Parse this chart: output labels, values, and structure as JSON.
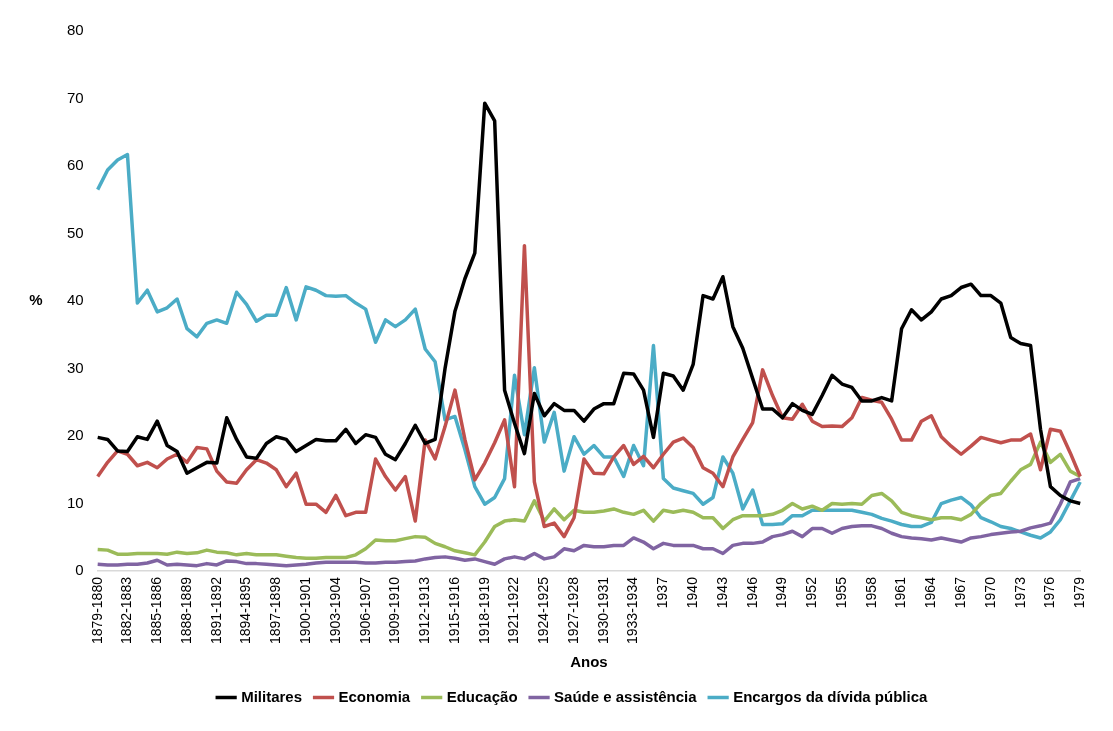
{
  "chart_data": {
    "type": "line",
    "xlabel": "Anos",
    "ylabel": "%",
    "categories": [
      "1879-1880",
      null,
      null,
      "1882-1883",
      null,
      null,
      "1885-1886",
      null,
      null,
      "1888-1889",
      null,
      null,
      "1891-1892",
      null,
      null,
      "1894-1895",
      null,
      null,
      "1897-1898",
      null,
      null,
      "1900-1901",
      null,
      null,
      "1903-1904",
      null,
      null,
      "1906-1907",
      null,
      null,
      "1909-1910",
      null,
      null,
      "1912-1913",
      null,
      null,
      "1915-1916",
      null,
      null,
      "1918-1919",
      null,
      null,
      "1921-1922",
      null,
      null,
      "1924-1925",
      null,
      null,
      "1927-1928",
      null,
      null,
      "1930-1931",
      null,
      null,
      "1933-1934",
      null,
      null,
      "1937",
      null,
      null,
      "1940",
      null,
      null,
      "1943",
      null,
      null,
      "1946",
      null,
      null,
      "1949",
      null,
      null,
      "1952",
      null,
      null,
      "1955",
      null,
      null,
      "1958",
      null,
      null,
      "1961",
      null,
      null,
      "1964",
      null,
      null,
      "1967",
      null,
      null,
      "1970",
      null,
      null,
      "1973",
      null,
      null,
      "1976",
      null,
      null,
      "1979"
    ],
    "series": [
      {
        "name": "Militares",
        "color": "#000000",
        "values": [
          19.8,
          19.5,
          17.8,
          17.7,
          19.9,
          19.5,
          22.2,
          18.6,
          17.7,
          14.5,
          15.3,
          16.1,
          16,
          22.7,
          19.5,
          16.9,
          16.7,
          18.9,
          19.9,
          19.5,
          17.7,
          18.6,
          19.5,
          19.3,
          19.3,
          21,
          18.9,
          20.2,
          19.8,
          17.3,
          16.5,
          18.9,
          21.6,
          18.9,
          19.5,
          30,
          38.5,
          43.3,
          47.1,
          69.3,
          66.7,
          26.8,
          21.9,
          17.4,
          26.3,
          23,
          24.8,
          23.8,
          23.8,
          22.2,
          24,
          24.8,
          24.8,
          29.3,
          29.2,
          26.8,
          19.8,
          29.3,
          28.9,
          26.8,
          30.6,
          40.8,
          40.3,
          43.6,
          36.2,
          33,
          28.5,
          24,
          24,
          22.7,
          24.8,
          23.8,
          23.2,
          26,
          29,
          27.7,
          27.2,
          25.2,
          25.2,
          25.7,
          25.2,
          35.9,
          38.7,
          37.2,
          38.4,
          40.3,
          40.8,
          42,
          42.5,
          40.8,
          40.8,
          39.7,
          34.6,
          33.7,
          33.4,
          21,
          12.5,
          11.2,
          10.4,
          10
        ]
      },
      {
        "name": "Economia",
        "color": "#c0504d",
        "values": [
          14,
          16.1,
          17.8,
          17.3,
          15.6,
          16.1,
          15.3,
          16.6,
          17.3,
          16.1,
          18.3,
          18.1,
          14.8,
          13.2,
          13,
          15,
          16.5,
          16,
          15,
          12.5,
          14.5,
          9.9,
          9.9,
          8.7,
          11.2,
          8.2,
          8.7,
          8.7,
          16.6,
          14,
          12,
          14,
          7.4,
          19.4,
          16.6,
          21.4,
          26.8,
          19.5,
          13.5,
          16,
          19,
          22.4,
          12.5,
          48.2,
          13.2,
          6.6,
          7.1,
          5.1,
          7.9,
          16.6,
          14.5,
          14.4,
          16.9,
          18.6,
          15.8,
          17,
          15.3,
          17.3,
          19.1,
          19.7,
          18.3,
          15.3,
          14.5,
          12.5,
          16.9,
          19.5,
          22,
          29.8,
          26,
          22.7,
          22.5,
          24.7,
          22.2,
          21.4,
          21.5,
          21.4,
          22.7,
          25.7,
          25.3,
          25,
          22.5,
          19.4,
          19.4,
          22.2,
          23,
          19.9,
          18.5,
          17.3,
          18.5,
          19.8,
          19.4,
          19,
          19.4,
          19.4,
          20.3,
          15,
          21,
          20.7,
          17.5,
          14
        ]
      },
      {
        "name": "Educação",
        "color": "#9bbb59",
        "values": [
          3.2,
          3.1,
          2.5,
          2.5,
          2.6,
          2.6,
          2.6,
          2.5,
          2.8,
          2.6,
          2.7,
          3.1,
          2.8,
          2.7,
          2.4,
          2.6,
          2.4,
          2.4,
          2.4,
          2.2,
          2,
          1.9,
          1.9,
          2,
          2,
          2,
          2.4,
          3.3,
          4.6,
          4.5,
          4.5,
          4.8,
          5.1,
          5,
          4.1,
          3.6,
          3,
          2.7,
          2.4,
          4.3,
          6.6,
          7.4,
          7.6,
          7.4,
          10.4,
          7.4,
          9.2,
          7.6,
          9,
          8.7,
          8.7,
          8.9,
          9.2,
          8.7,
          8.4,
          9,
          7.4,
          9,
          8.7,
          9,
          8.7,
          7.9,
          7.9,
          6.3,
          7.6,
          8.2,
          8.2,
          8.2,
          8.4,
          9,
          10,
          9.2,
          9.6,
          9,
          10,
          9.9,
          10,
          9.9,
          11.2,
          11.5,
          10.4,
          8.7,
          8.2,
          7.9,
          7.6,
          7.9,
          7.9,
          7.6,
          8.4,
          10,
          11.2,
          11.5,
          13.3,
          15,
          15.8,
          19.1,
          16.1,
          17.3,
          14.8,
          14
        ]
      },
      {
        "name": "Saúde e assistência",
        "color": "#8064a2",
        "values": [
          1,
          0.9,
          0.9,
          1,
          1,
          1.2,
          1.6,
          0.9,
          1,
          0.9,
          0.8,
          1.1,
          0.9,
          1.5,
          1.4,
          1.1,
          1.1,
          1,
          0.9,
          0.8,
          0.9,
          1,
          1.2,
          1.3,
          1.3,
          1.3,
          1.3,
          1.2,
          1.2,
          1.3,
          1.3,
          1.4,
          1.5,
          1.8,
          2,
          2.1,
          1.9,
          1.6,
          1.8,
          1.4,
          1,
          1.8,
          2.1,
          1.8,
          2.6,
          1.8,
          2.1,
          3.3,
          3,
          3.8,
          3.6,
          3.6,
          3.8,
          3.8,
          4.9,
          4.3,
          3.3,
          4.1,
          3.8,
          3.8,
          3.8,
          3.3,
          3.3,
          2.6,
          3.8,
          4.1,
          4.1,
          4.3,
          5.1,
          5.4,
          5.9,
          5.1,
          6.3,
          6.3,
          5.6,
          6.3,
          6.6,
          6.7,
          6.7,
          6.3,
          5.6,
          5.1,
          4.9,
          4.8,
          4.6,
          4.9,
          4.6,
          4.3,
          4.9,
          5.1,
          5.4,
          5.6,
          5.8,
          5.9,
          6.4,
          6.7,
          7.1,
          9.9,
          13.2,
          13.7
        ]
      },
      {
        "name": "Encargos da dívida pública",
        "color": "#4bacc6",
        "values": [
          56.5,
          59.4,
          60.9,
          61.7,
          39.7,
          41.6,
          38.4,
          39,
          40.3,
          35.9,
          34.7,
          36.7,
          37.2,
          36.7,
          41.3,
          39.5,
          37,
          37.9,
          37.9,
          42,
          37.2,
          42.1,
          41.6,
          40.8,
          40.7,
          40.8,
          39.7,
          38.8,
          33.9,
          37.2,
          36.2,
          37.2,
          38.8,
          32.9,
          31,
          22.4,
          22.9,
          18,
          12.5,
          9.9,
          10.9,
          13.7,
          29,
          20.2,
          30.1,
          19.1,
          23.5,
          14.8,
          19.9,
          17.3,
          18.6,
          16.9,
          16.9,
          14,
          18.6,
          15.6,
          33.4,
          13.7,
          12.3,
          11.9,
          11.5,
          9.9,
          10.9,
          16.9,
          14.5,
          9.2,
          12,
          6.9,
          6.9,
          7,
          8.2,
          8.2,
          9,
          9,
          9,
          9,
          9,
          8.7,
          8.4,
          7.8,
          7.4,
          6.9,
          6.6,
          6.6,
          7.2,
          10,
          10.5,
          10.9,
          9.8,
          7.9,
          7.3,
          6.6,
          6.3,
          5.8,
          5.3,
          4.9,
          5.8,
          7.6,
          10.4,
          13.2
        ]
      }
    ],
    "ylim": [
      0,
      80
    ],
    "yticks": [
      0,
      10,
      20,
      30,
      40,
      50,
      60,
      70,
      80
    ],
    "grid": false,
    "legend": "bottom"
  }
}
